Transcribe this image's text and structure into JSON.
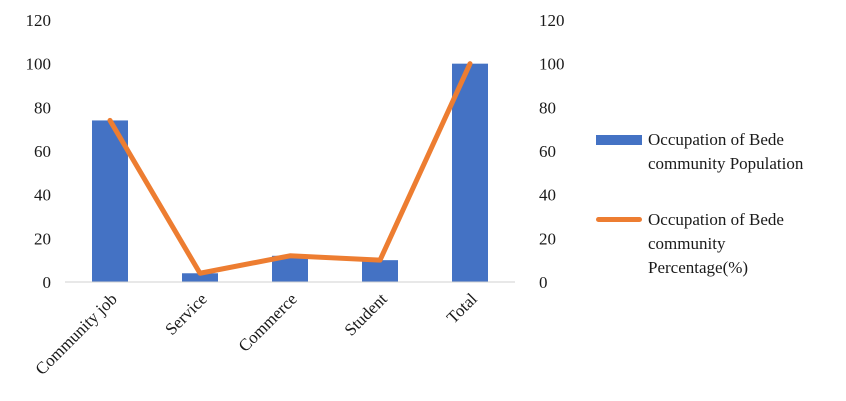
{
  "chart_data": {
    "type": "bar",
    "categories": [
      "Community job",
      "Service",
      "Commerce",
      "Student",
      "Total"
    ],
    "series": [
      {
        "name": "Occupation of Bede\ncommunity Population",
        "type": "bar",
        "axis": "left",
        "color": "#4472C4",
        "values": [
          74,
          4,
          12,
          10,
          100
        ]
      },
      {
        "name": "Occupation of Bede\ncommunity\nPercentage(%)",
        "type": "line",
        "axis": "right",
        "color": "#ED7D31",
        "values": [
          74,
          4,
          12,
          10,
          100
        ]
      }
    ],
    "ylim": [
      0,
      120
    ],
    "y2lim": [
      0,
      120
    ],
    "yticks": [
      0,
      20,
      40,
      60,
      80,
      100,
      120
    ],
    "y2ticks": [
      0,
      20,
      40,
      60,
      80,
      100,
      120
    ],
    "grid": false,
    "legend_position": "right"
  }
}
